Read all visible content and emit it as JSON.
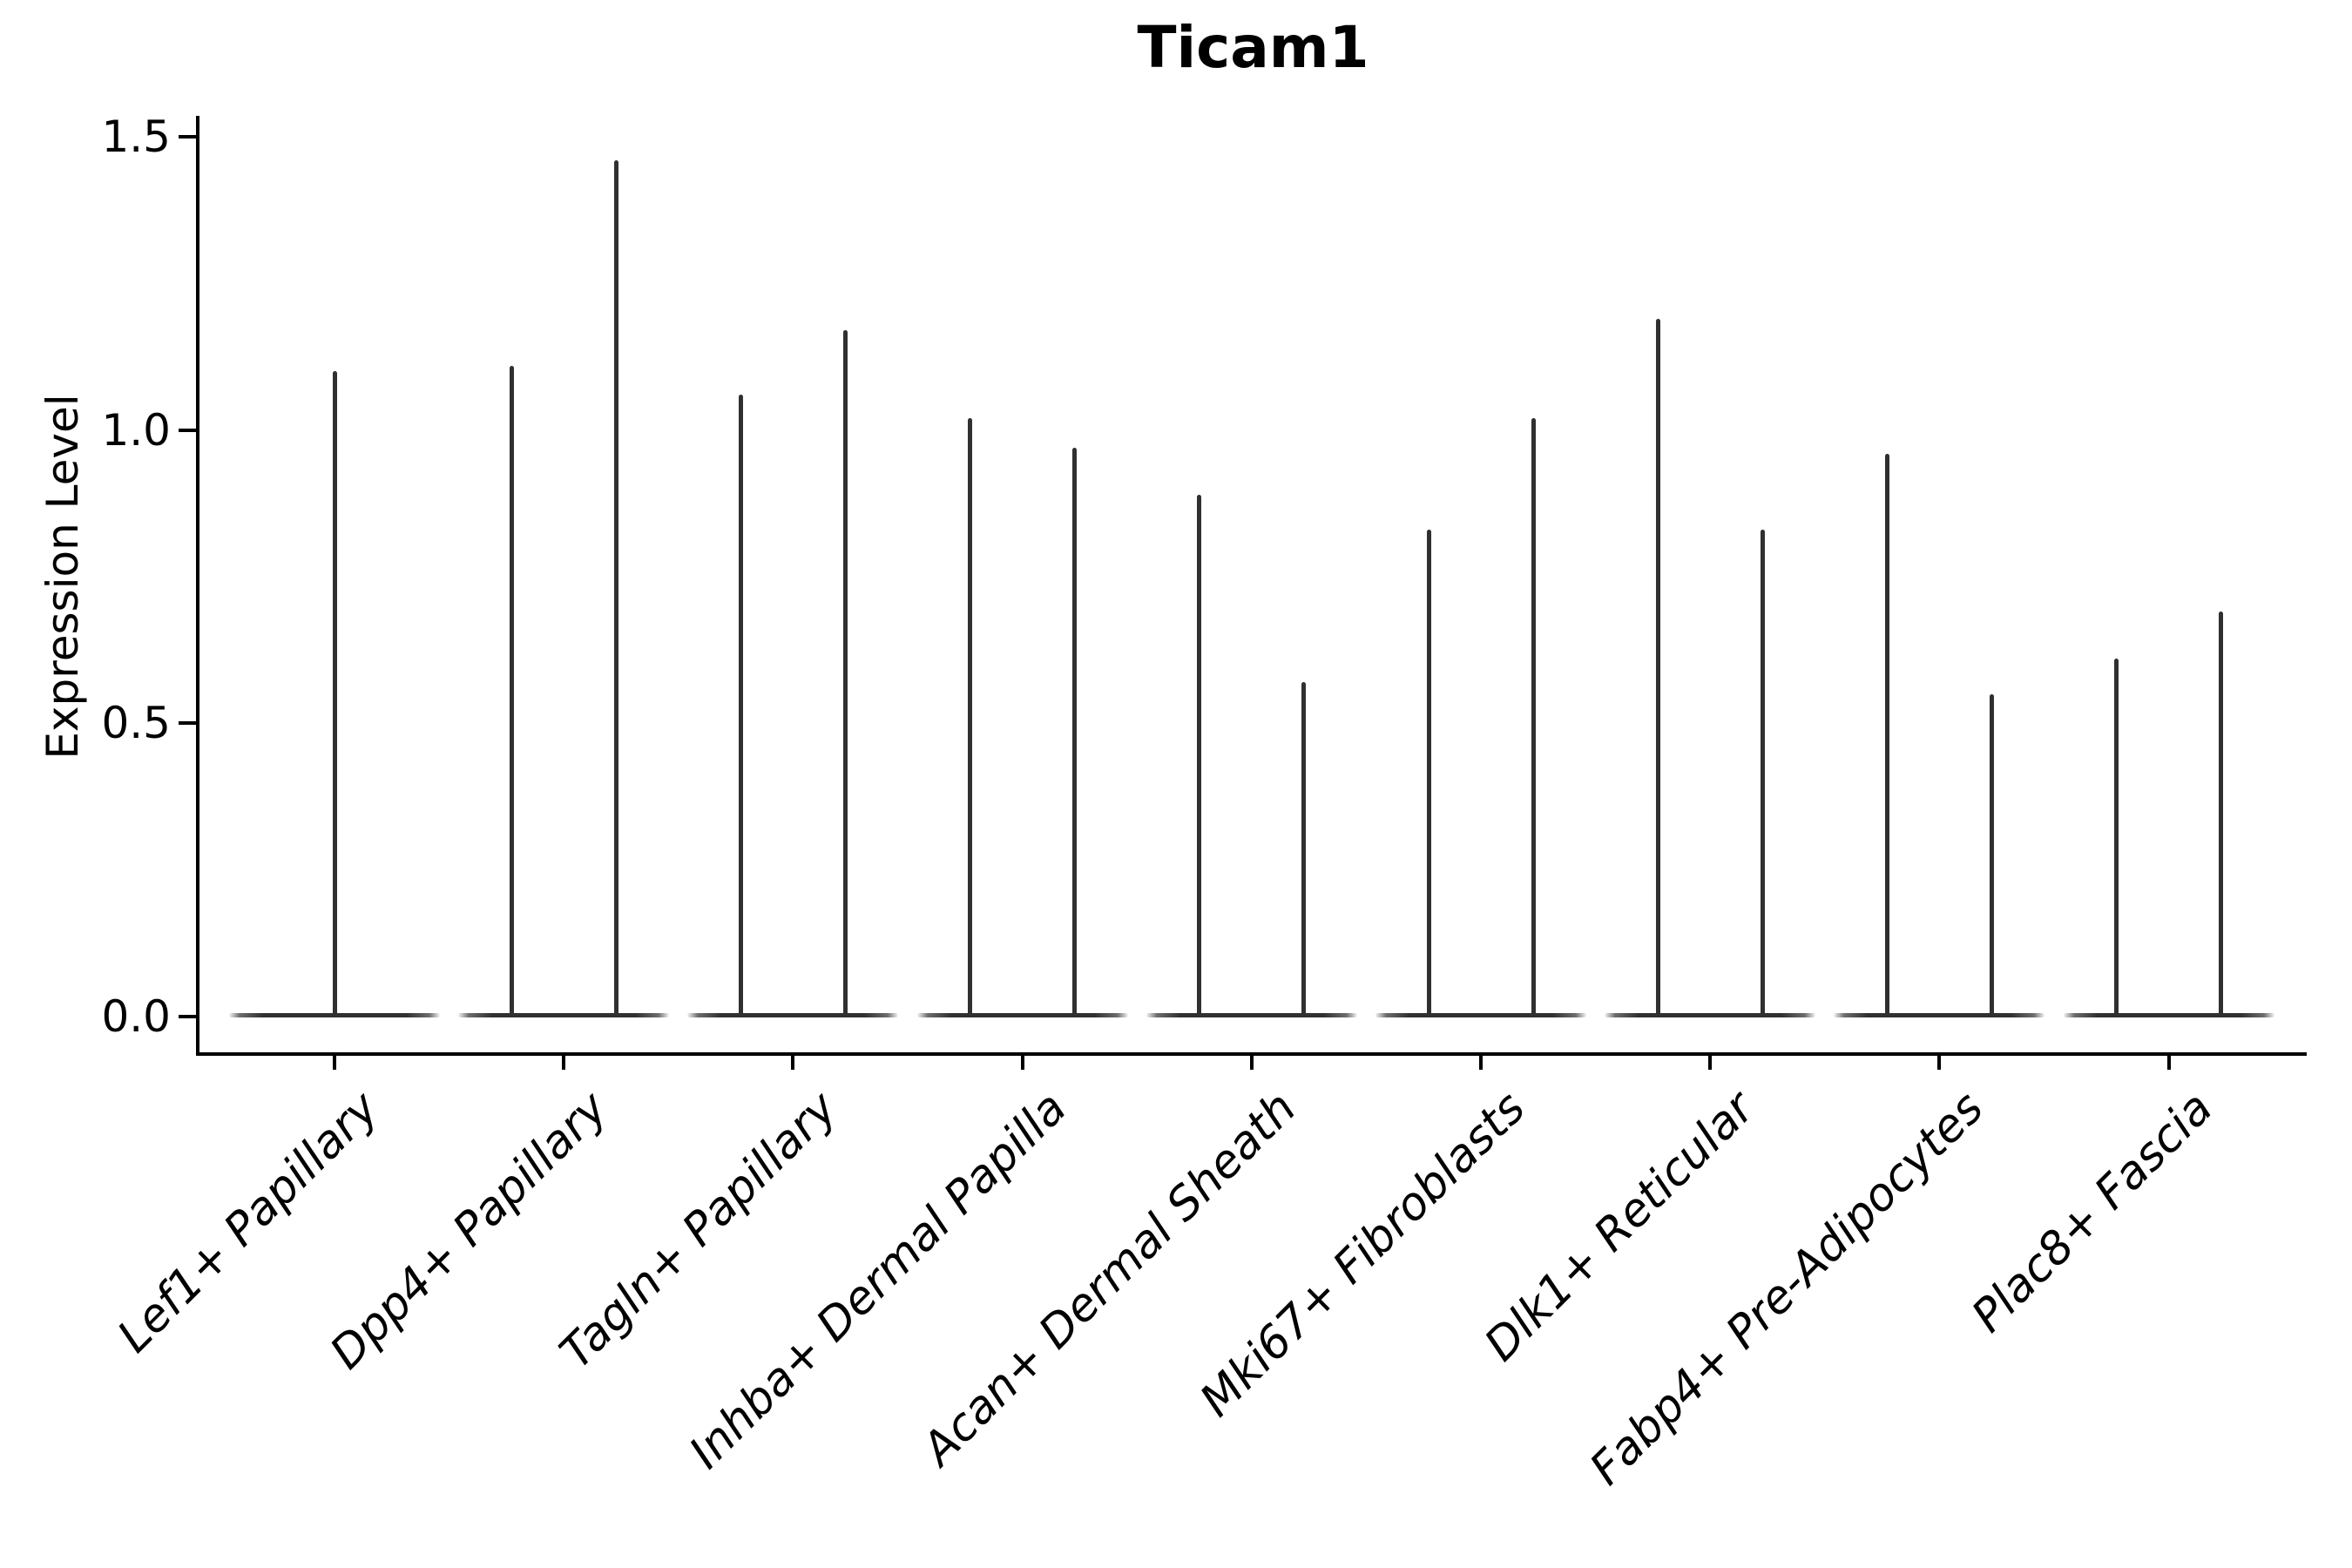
{
  "chart_data": {
    "type": "violin",
    "title": "Ticam1",
    "ylabel": "Expression Level",
    "xlabel": "",
    "yticks": [
      0.0,
      0.5,
      1.0,
      1.5
    ],
    "ytick_labels": [
      "0.0",
      "0.5",
      "1.0",
      "1.5"
    ],
    "ylim": [
      -0.06,
      1.54
    ],
    "grid": false,
    "legend": "none",
    "style": "needle-thin violins with flat density base at 0; only left and bottom spines; x tick labels italic, rotated 45 degrees",
    "categories": [
      "Lef1+ Papillary",
      "Dpp4+ Papillary",
      "Tagln+ Papillary",
      "Inhba+ Dermal Papilla",
      "Acan+ Dermal Sheath",
      "Mki67+ Fibroblasts",
      "Dlk1+ Reticular",
      "Fabp4+ Pre-Adipocytes",
      "Plac8+ Fascia"
    ],
    "groups": [
      {
        "category": "Lef1+ Papillary",
        "violins": [
          {
            "position": "center",
            "min": 0.0,
            "max": 1.1
          }
        ]
      },
      {
        "category": "Dpp4+ Papillary",
        "violins": [
          {
            "position": "left",
            "min": 0.0,
            "max": 1.11
          },
          {
            "position": "right",
            "min": 0.0,
            "max": 1.46
          }
        ]
      },
      {
        "category": "Tagln+ Papillary",
        "violins": [
          {
            "position": "left",
            "min": 0.0,
            "max": 1.06
          },
          {
            "position": "right",
            "min": 0.0,
            "max": 1.17
          }
        ]
      },
      {
        "category": "Inhba+ Dermal Papilla",
        "violins": [
          {
            "position": "left",
            "min": 0.0,
            "max": 1.02
          },
          {
            "position": "right",
            "min": 0.0,
            "max": 0.97
          }
        ]
      },
      {
        "category": "Acan+ Dermal Sheath",
        "violins": [
          {
            "position": "left",
            "min": 0.0,
            "max": 0.89
          },
          {
            "position": "right",
            "min": 0.0,
            "max": 0.57
          }
        ]
      },
      {
        "category": "Mki67+ Fibroblasts",
        "violins": [
          {
            "position": "left",
            "min": 0.0,
            "max": 0.83
          },
          {
            "position": "right",
            "min": 0.0,
            "max": 1.02
          }
        ]
      },
      {
        "category": "Dlk1+ Reticular",
        "violins": [
          {
            "position": "left",
            "min": 0.0,
            "max": 1.19
          },
          {
            "position": "right",
            "min": 0.0,
            "max": 0.83
          }
        ]
      },
      {
        "category": "Fabp4+ Pre-Adipocytes",
        "violins": [
          {
            "position": "left",
            "min": 0.0,
            "max": 0.96
          },
          {
            "position": "right",
            "min": 0.0,
            "max": 0.55
          }
        ]
      },
      {
        "category": "Plac8+ Fascia",
        "violins": [
          {
            "position": "left",
            "min": 0.0,
            "max": 0.61
          },
          {
            "position": "right",
            "min": 0.0,
            "max": 0.69
          }
        ]
      }
    ],
    "colors": {
      "violin": "#303030",
      "axis": "#000000",
      "text": "#000000",
      "background": "#ffffff"
    }
  }
}
